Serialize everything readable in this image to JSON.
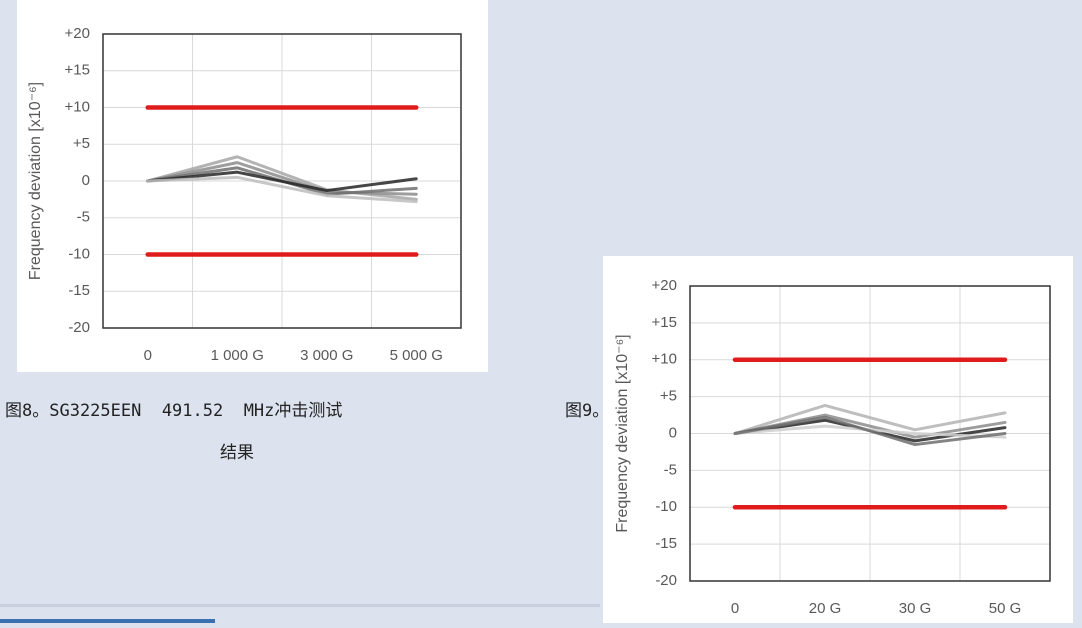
{
  "chart_data": [
    {
      "type": "line",
      "caption": [
        "图8。SG3225EEN  491.52  MHz冲击测试",
        "结果"
      ],
      "y_label": "Frequency deviation [x10⁻⁶]",
      "categories": [
        "0",
        "1 000 G",
        "3 000 G",
        "5 000 G"
      ],
      "ylim": [
        -20,
        20
      ],
      "yticks": [
        {
          "value": 20,
          "label": "+20"
        },
        {
          "value": 15,
          "label": "+15"
        },
        {
          "value": 10,
          "label": "+10"
        },
        {
          "value": 5,
          "label": "+5"
        },
        0,
        -5,
        -10,
        -15,
        -20
      ],
      "grid": true,
      "series": [
        {
          "color": "#e01b1b",
          "values": [
            10,
            10,
            10,
            10
          ]
        },
        {
          "color": "#e01b1b",
          "values": [
            -10,
            -10,
            -10,
            -10
          ]
        },
        {
          "color": "#a6a6a6",
          "values": [
            0,
            3.3,
            -1.2,
            -2.5
          ]
        },
        {
          "color": "#8c8c8c",
          "values": [
            0,
            2.5,
            -1.5,
            -1.8
          ]
        },
        {
          "color": "#6e6e6e",
          "values": [
            0,
            1.8,
            -1.8,
            -1
          ]
        },
        {
          "color": "#262626",
          "values": [
            0,
            1.2,
            -1.3,
            0.3
          ]
        },
        {
          "color": "#bdbdbd",
          "values": [
            0,
            0.5,
            -2,
            -2.8
          ]
        }
      ]
    },
    {
      "type": "line",
      "caption": [
        "图9。"
      ],
      "y_label": "Frequency deviation [x10⁻⁶]",
      "categories": [
        "0",
        "20 G",
        "30 G",
        "50 G"
      ],
      "ylim": [
        -20,
        20
      ],
      "yticks": [
        {
          "value": 20,
          "label": "+20"
        },
        {
          "value": 15,
          "label": "+15"
        },
        {
          "value": 10,
          "label": "+10"
        },
        {
          "value": 5,
          "label": "+5"
        },
        0,
        -5,
        -10,
        -15,
        -20
      ],
      "grid": true,
      "series": [
        {
          "color": "#e01b1b",
          "values": [
            10,
            10,
            10,
            10
          ]
        },
        {
          "color": "#e01b1b",
          "values": [
            -10,
            -10,
            -10,
            -10
          ]
        },
        {
          "color": "#b3b3b3",
          "values": [
            0,
            3.8,
            0.5,
            2.8
          ]
        },
        {
          "color": "#8c8c8c",
          "values": [
            0,
            2.5,
            -0.5,
            1.5
          ]
        },
        {
          "color": "#262626",
          "values": [
            0,
            1.8,
            -1,
            0.8
          ]
        },
        {
          "color": "#cfcfcf",
          "values": [
            0,
            1,
            0,
            -0.5
          ]
        },
        {
          "color": "#6e6e6e",
          "values": [
            0,
            2.2,
            -1.5,
            0
          ]
        }
      ]
    }
  ]
}
